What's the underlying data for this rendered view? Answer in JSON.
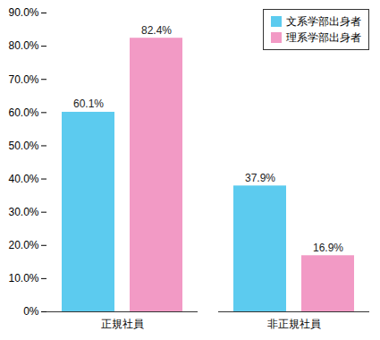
{
  "chart_data": {
    "type": "bar",
    "categories": [
      "正規社員",
      "非正規社員"
    ],
    "series": [
      {
        "name": "文系学部出身者",
        "color": "#5ccbef",
        "values": [
          60.1,
          37.9
        ],
        "value_labels": [
          "60.1%",
          "37.9%"
        ]
      },
      {
        "name": "理系学部出身者",
        "color": "#f29ac5",
        "values": [
          82.4,
          16.9
        ],
        "value_labels": [
          "82.4%",
          "16.9%"
        ]
      }
    ],
    "ylim": [
      0,
      90
    ],
    "yticks": [
      {
        "value": 0,
        "label": "0%"
      },
      {
        "value": 10,
        "label": "10.0%"
      },
      {
        "value": 20,
        "label": "20.0%"
      },
      {
        "value": 30,
        "label": "30.0%"
      },
      {
        "value": 40,
        "label": "40.0%"
      },
      {
        "value": 50,
        "label": "50.0%"
      },
      {
        "value": 60,
        "label": "60.0%"
      },
      {
        "value": 70,
        "label": "70.0%"
      },
      {
        "value": 80,
        "label": "80.0%"
      },
      {
        "value": 90,
        "label": "90.0%"
      }
    ],
    "grid": false,
    "legend": "top-right",
    "data_labels": true
  }
}
